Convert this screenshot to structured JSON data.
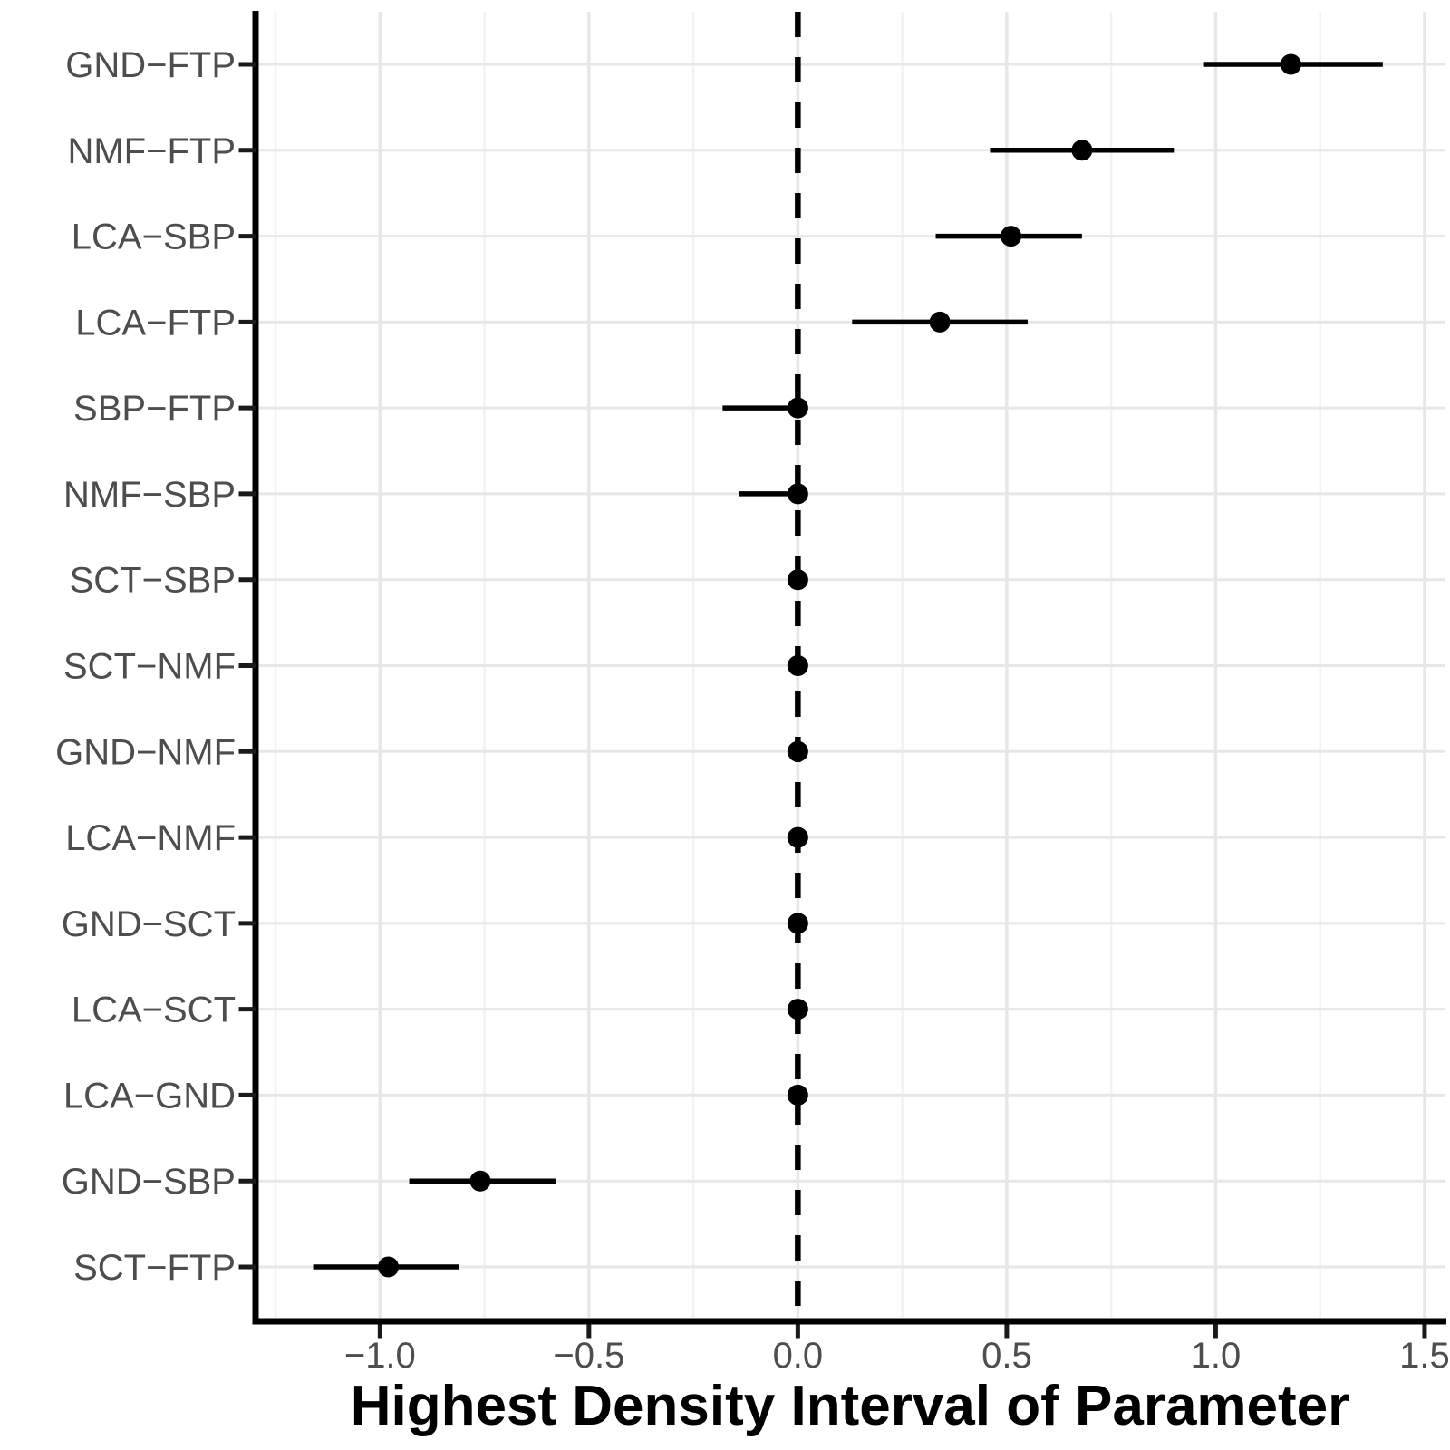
{
  "chart_data": {
    "type": "scatter",
    "subtype": "forest-interval-plot",
    "title": "",
    "xlabel": "Highest Density Interval of Parameter",
    "ylabel": "",
    "categories": [
      "GND−FTP",
      "NMF−FTP",
      "LCA−SBP",
      "LCA−FTP",
      "SBP−FTP",
      "NMF−SBP",
      "SCT−SBP",
      "SCT−NMF",
      "GND−NMF",
      "LCA−NMF",
      "GND−SCT",
      "LCA−SCT",
      "LCA−GND",
      "GND−SBP",
      "SCT−FTP"
    ],
    "series": [
      {
        "name": "hdi-intervals",
        "points": [
          {
            "label": "GND−FTP",
            "value": 1.18,
            "lower": 0.97,
            "upper": 1.4
          },
          {
            "label": "NMF−FTP",
            "value": 0.68,
            "lower": 0.46,
            "upper": 0.9
          },
          {
            "label": "LCA−SBP",
            "value": 0.51,
            "lower": 0.33,
            "upper": 0.68
          },
          {
            "label": "LCA−FTP",
            "value": 0.34,
            "lower": 0.13,
            "upper": 0.55
          },
          {
            "label": "SBP−FTP",
            "value": 0.0,
            "lower": -0.18,
            "upper": 0.02
          },
          {
            "label": "NMF−SBP",
            "value": 0.0,
            "lower": -0.14,
            "upper": 0.02
          },
          {
            "label": "SCT−SBP",
            "value": 0.0,
            "lower": -0.02,
            "upper": 0.02
          },
          {
            "label": "SCT−NMF",
            "value": 0.0,
            "lower": -0.02,
            "upper": 0.02
          },
          {
            "label": "GND−NMF",
            "value": 0.0,
            "lower": -0.01,
            "upper": 0.01
          },
          {
            "label": "LCA−NMF",
            "value": 0.0,
            "lower": -0.02,
            "upper": 0.02
          },
          {
            "label": "GND−SCT",
            "value": 0.0,
            "lower": -0.02,
            "upper": 0.02
          },
          {
            "label": "LCA−SCT",
            "value": 0.0,
            "lower": -0.02,
            "upper": 0.02
          },
          {
            "label": "LCA−GND",
            "value": 0.0,
            "lower": -0.01,
            "upper": 0.01
          },
          {
            "label": "GND−SBP",
            "value": -0.76,
            "lower": -0.93,
            "upper": -0.58
          },
          {
            "label": "SCT−FTP",
            "value": -0.98,
            "lower": -1.16,
            "upper": -0.81
          }
        ]
      }
    ],
    "x_ticks": [
      "−1.0",
      "−0.5",
      "0.0",
      "0.5",
      "1.0",
      "1.5"
    ],
    "x_tick_values": [
      -1.0,
      -0.5,
      0.0,
      0.5,
      1.0,
      1.5
    ],
    "x_minor_tick_values": [
      -1.25,
      -0.75,
      -0.25,
      0.25,
      0.75,
      1.25
    ],
    "xlim": [
      -1.3,
      1.55
    ],
    "reference_line_x": 0.0,
    "grid": true,
    "legend": "none",
    "colors": {
      "point": "#000000",
      "interval_line": "#000000",
      "reference_line": "#000000",
      "grid_major": "#e7e7e7",
      "grid_minor": "#f2f2f2",
      "axis_line": "#000000",
      "tick_mark": "#1a1a1a",
      "tick_label": "#4d4d4d",
      "axis_title": "#000000",
      "background": "#ffffff"
    }
  }
}
